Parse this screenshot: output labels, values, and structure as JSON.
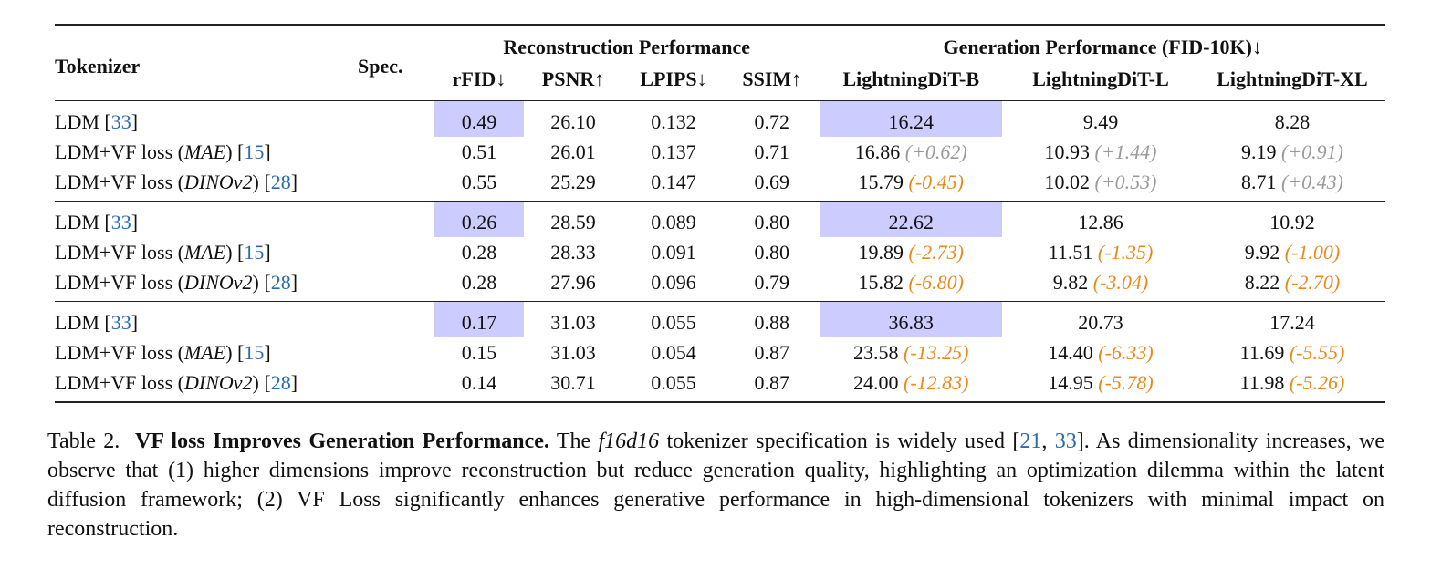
{
  "table": {
    "headers": {
      "tokenizer": "Tokenizer",
      "spec": "Spec.",
      "recon_group": "Reconstruction Performance",
      "gen_group": "Generation Performance (FID-10K)↓",
      "rfid": "rFID↓",
      "psnr": "PSNR↑",
      "lpips": "LPIPS↓",
      "ssim": "SSIM↑",
      "ldit_b": "LightningDiT-B",
      "ldit_l": "LightningDiT-L",
      "ldit_xl": "LightningDiT-XL"
    },
    "groups": [
      {
        "rows": [
          {
            "name": "LDM [",
            "method": "",
            "cite": "33",
            "suffix": "]",
            "rfid": "0.49",
            "psnr": "26.10",
            "lpips": "0.132",
            "ssim": "0.72",
            "b": "16.24",
            "b_delta": "",
            "l": "9.49",
            "l_delta": "",
            "xl": "8.28",
            "xl_delta": ""
          },
          {
            "name": "LDM+VF loss (",
            "method": "MAE",
            "cite": "15",
            "suffix": ") [",
            "rfid": "0.51",
            "psnr": "26.01",
            "lpips": "0.137",
            "ssim": "0.71",
            "b": "16.86",
            "b_delta": "(+0.62)",
            "l": "10.93",
            "l_delta": "(+1.44)",
            "xl": "9.19",
            "xl_delta": "(+0.91)"
          },
          {
            "name": "LDM+VF loss (",
            "method": "DINOv2",
            "cite": "28",
            "suffix": ") [",
            "rfid": "0.55",
            "psnr": "25.29",
            "lpips": "0.147",
            "ssim": "0.69",
            "b": "15.79",
            "b_delta": "(-0.45)",
            "l": "10.02",
            "l_delta": "(+0.53)",
            "xl": "8.71",
            "xl_delta": "(+0.43)"
          }
        ]
      },
      {
        "rows": [
          {
            "name": "LDM [",
            "method": "",
            "cite": "33",
            "suffix": "]",
            "rfid": "0.26",
            "psnr": "28.59",
            "lpips": "0.089",
            "ssim": "0.80",
            "b": "22.62",
            "b_delta": "",
            "l": "12.86",
            "l_delta": "",
            "xl": "10.92",
            "xl_delta": ""
          },
          {
            "name": "LDM+VF loss (",
            "method": "MAE",
            "cite": "15",
            "suffix": ") [",
            "rfid": "0.28",
            "psnr": "28.33",
            "lpips": "0.091",
            "ssim": "0.80",
            "b": "19.89",
            "b_delta": "(-2.73)",
            "l": "11.51",
            "l_delta": "(-1.35)",
            "xl": "9.92",
            "xl_delta": "(-1.00)"
          },
          {
            "name": "LDM+VF loss (",
            "method": "DINOv2",
            "cite": "28",
            "suffix": ") [",
            "rfid": "0.28",
            "psnr": "27.96",
            "lpips": "0.096",
            "ssim": "0.79",
            "b": "15.82",
            "b_delta": "(-6.80)",
            "l": "9.82",
            "l_delta": "(-3.04)",
            "xl": "8.22",
            "xl_delta": "(-2.70)"
          }
        ]
      },
      {
        "rows": [
          {
            "name": "LDM [",
            "method": "",
            "cite": "33",
            "suffix": "]",
            "rfid": "0.17",
            "psnr": "31.03",
            "lpips": "0.055",
            "ssim": "0.88",
            "b": "36.83",
            "b_delta": "",
            "l": "20.73",
            "l_delta": "",
            "xl": "17.24",
            "xl_delta": ""
          },
          {
            "name": "LDM+VF loss (",
            "method": "MAE",
            "cite": "15",
            "suffix": ") [",
            "rfid": "0.15",
            "psnr": "31.03",
            "lpips": "0.054",
            "ssim": "0.87",
            "b": "23.58",
            "b_delta": "(-13.25)",
            "l": "14.40",
            "l_delta": "(-6.33)",
            "xl": "11.69",
            "xl_delta": "(-5.55)"
          },
          {
            "name": "LDM+VF loss (",
            "method": "DINOv2",
            "cite": "28",
            "suffix": ") [",
            "rfid": "0.14",
            "psnr": "30.71",
            "lpips": "0.055",
            "ssim": "0.87",
            "b": "24.00",
            "b_delta": "(-12.83)",
            "l": "14.95",
            "l_delta": "(-5.78)",
            "xl": "11.98",
            "xl_delta": "(-5.26)"
          }
        ]
      }
    ]
  },
  "caption": {
    "label": "Table 2.",
    "title": "VF loss Improves Generation Performance.",
    "text_1": "The",
    "spec_name": "f16d16",
    "text_2": "tokenizer specification is widely used [",
    "cite_a": "21",
    "sep": ",",
    "cite_b": "33",
    "text_3": "].  As dimensionality increases, we observe that (1) higher dimensions improve reconstruction but reduce generation quality, highlighting an optimization dilemma within the latent diffusion framework; (2) VF Loss significantly enhances generative performance in high-dimensional tokenizers with minimal impact on reconstruction."
  },
  "colors": {
    "highlight": "#ccccff",
    "citation": "#2a6ab1",
    "delta_worse": "#9a9a9a",
    "delta_better": "#e8891e"
  }
}
